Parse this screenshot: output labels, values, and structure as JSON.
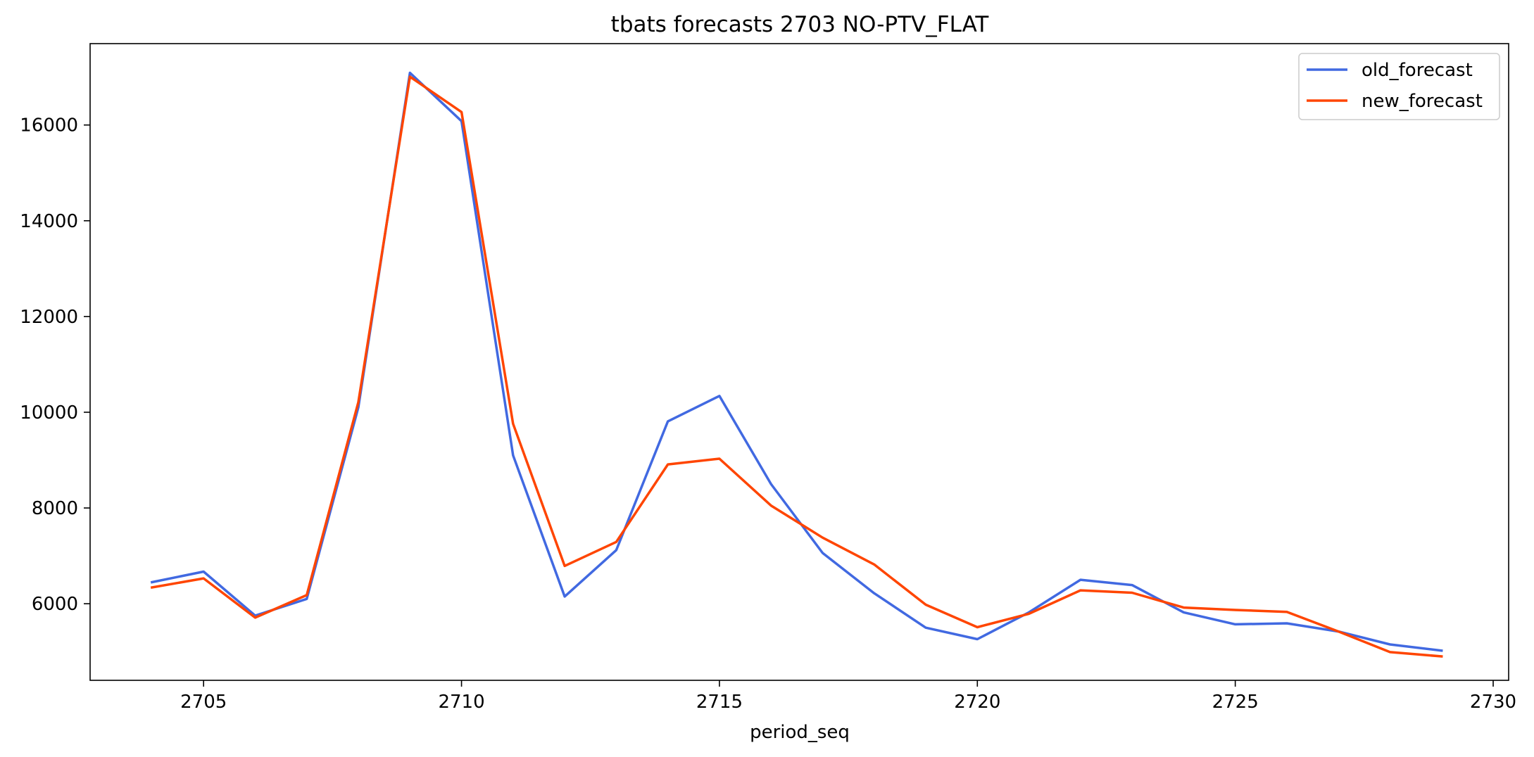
{
  "chart_data": {
    "type": "line",
    "title": "tbats forecasts 2703 NO-PTV_FLAT",
    "xlabel": "period_seq",
    "ylabel": "",
    "xlim": [
      2702.8,
      2730.3
    ],
    "ylim": [
      4400,
      17700
    ],
    "xticks": [
      2705,
      2710,
      2715,
      2720,
      2725,
      2730
    ],
    "yticks": [
      6000,
      8000,
      10000,
      12000,
      14000,
      16000
    ],
    "grid": false,
    "legend_position": "top-right",
    "x": [
      2704,
      2705,
      2706,
      2707,
      2708,
      2709,
      2710,
      2711,
      2712,
      2713,
      2714,
      2715,
      2716,
      2717,
      2718,
      2719,
      2720,
      2721,
      2722,
      2723,
      2724,
      2725,
      2726,
      2727,
      2728,
      2729
    ],
    "series": [
      {
        "name": "old_forecast",
        "color": "#4169E1",
        "values": [
          6450,
          6670,
          5750,
          6100,
          10100,
          17090,
          16080,
          9100,
          6150,
          7120,
          9810,
          10340,
          8500,
          7060,
          6220,
          5500,
          5260,
          5820,
          6500,
          6390,
          5820,
          5570,
          5590,
          5420,
          5150,
          5020
        ]
      },
      {
        "name": "new_forecast",
        "color": "#FF4500",
        "values": [
          6340,
          6530,
          5710,
          6180,
          10210,
          17010,
          16270,
          9760,
          6790,
          7290,
          8910,
          9030,
          8050,
          7380,
          6820,
          5980,
          5510,
          5790,
          6280,
          6230,
          5920,
          5870,
          5830,
          5420,
          4990,
          4900
        ]
      }
    ]
  }
}
